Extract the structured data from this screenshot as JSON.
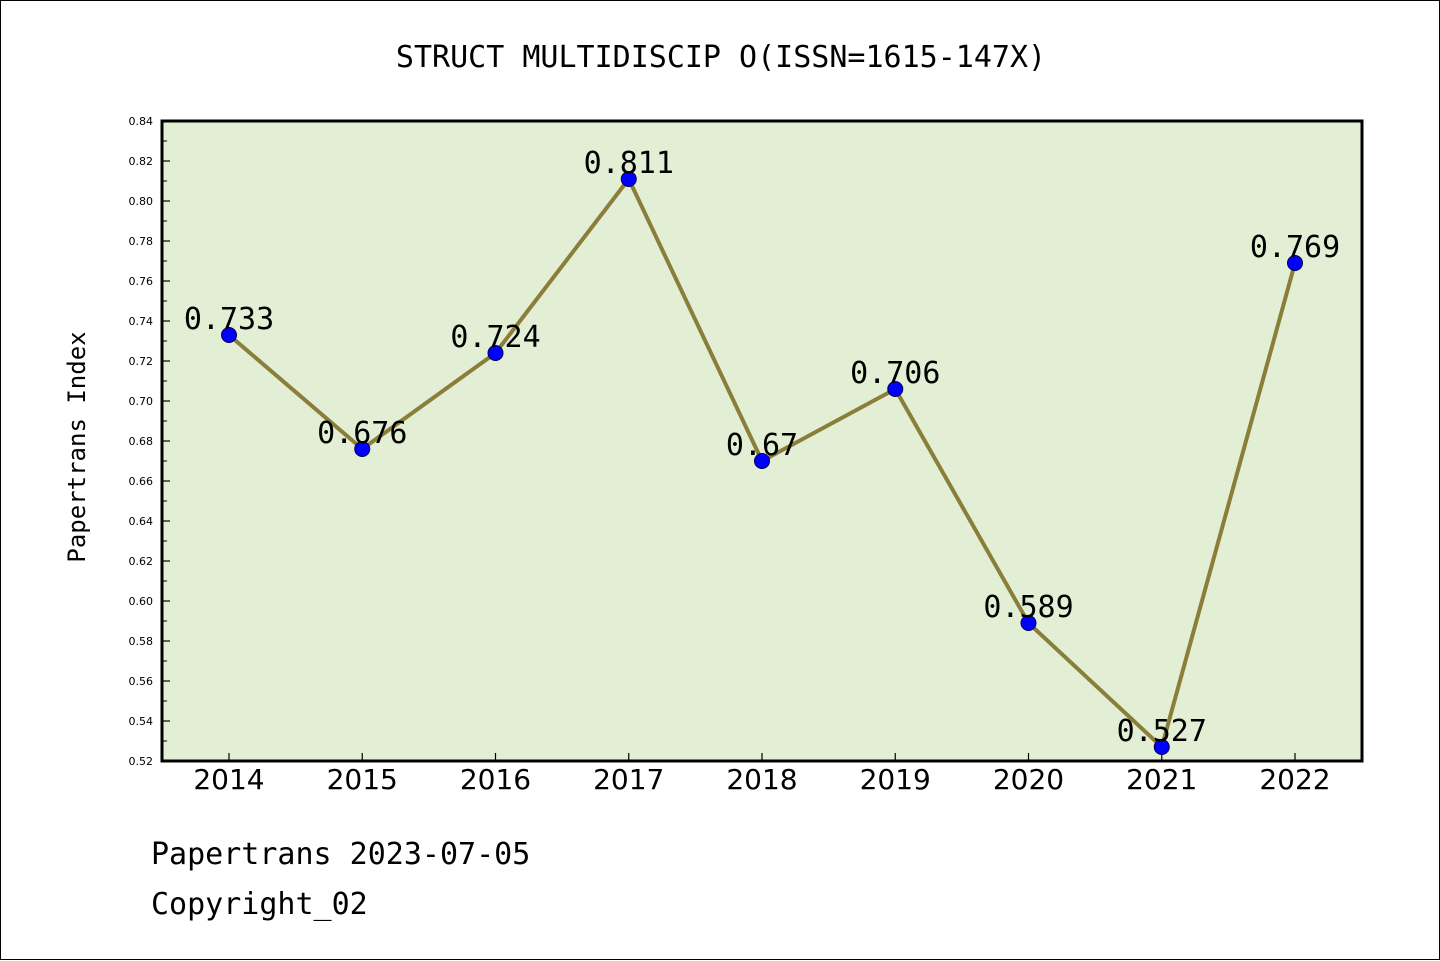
{
  "chart_data": {
    "type": "line",
    "title": "STRUCT MULTIDISCIP O(ISSN=1615-147X)",
    "xlabel": "",
    "ylabel": "Papertrans Index",
    "categories": [
      "2014",
      "2015",
      "2016",
      "2017",
      "2018",
      "2019",
      "2020",
      "2021",
      "2022"
    ],
    "series": [
      {
        "values": [
          0.733,
          0.676,
          0.724,
          0.811,
          0.67,
          0.706,
          0.589,
          0.527,
          0.769
        ],
        "labels": [
          "0.733",
          "0.676",
          "0.724",
          "0.811",
          "0.67",
          "0.706",
          "0.589",
          "0.527",
          "0.769"
        ]
      }
    ],
    "yticks": [
      "0.52",
      "0.54",
      "0.56",
      "0.58",
      "0.60",
      "0.62",
      "0.64",
      "0.66",
      "0.68",
      "0.70",
      "0.72",
      "0.74",
      "0.76",
      "0.78",
      "0.80",
      "0.82",
      "0.84"
    ],
    "ylim": [
      0.52,
      0.84
    ],
    "grid": false,
    "colors": {
      "plot_background": "#e2efd5",
      "line": "#8b7d3a",
      "marker": "#0000ff"
    }
  },
  "footer": {
    "date_text": "Papertrans 2023-07-05",
    "copyright_text": "Copyright_02"
  }
}
